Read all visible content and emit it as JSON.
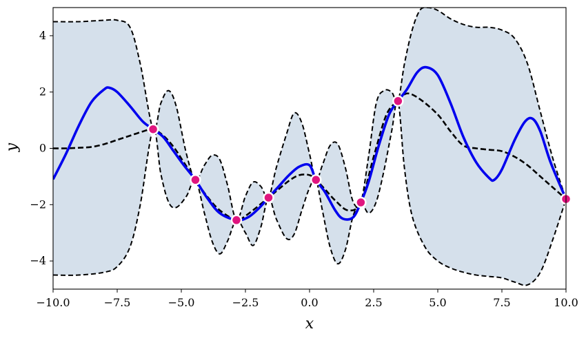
{
  "chart_data": {
    "type": "line",
    "xlabel": "x",
    "ylabel": "y",
    "xlim": [
      -10,
      10
    ],
    "ylim": [
      -5,
      5
    ],
    "x_ticks": [
      -10.0,
      -7.5,
      -5.0,
      -2.5,
      0.0,
      2.5,
      5.0,
      7.5,
      10.0
    ],
    "x_tick_labels": [
      "−10.0",
      "−7.5",
      "−5.0",
      "−2.5",
      "0.0",
      "2.5",
      "5.0",
      "7.5",
      "10.0"
    ],
    "y_ticks": [
      -4,
      -2,
      0,
      2,
      4
    ],
    "y_tick_labels": [
      "−4",
      "−2",
      "0",
      "2",
      "4"
    ],
    "grid": false,
    "colors": {
      "sample": "#0000ee",
      "mean": "#000000",
      "band_fill": "#d5e0eb",
      "point_fill": "#e0157f",
      "point_edge": "#ffffff"
    },
    "observations": [
      {
        "x": -6.1,
        "y": 0.68
      },
      {
        "x": -4.45,
        "y": -1.12
      },
      {
        "x": -2.85,
        "y": -2.55
      },
      {
        "x": -1.6,
        "y": -1.75
      },
      {
        "x": 0.25,
        "y": -1.12
      },
      {
        "x": 2.0,
        "y": -1.92
      },
      {
        "x": 3.45,
        "y": 1.68
      },
      {
        "x": 10.0,
        "y": -1.8
      }
    ],
    "series": [
      {
        "role": "upper",
        "x": [
          -10,
          -9,
          -8,
          -7.5,
          -7,
          -6.6,
          -6.1,
          -5.8,
          -5.5,
          -5.2,
          -4.8,
          -4.45,
          -4.1,
          -3.8,
          -3.5,
          -3.2,
          -2.85,
          -2.5,
          -2.2,
          -1.9,
          -1.6,
          -1.3,
          -0.9,
          -0.6,
          -0.3,
          0.0,
          0.25,
          0.5,
          0.8,
          1.1,
          1.4,
          1.7,
          2.0,
          2.3,
          2.6,
          2.9,
          3.2,
          3.45,
          3.7,
          4.0,
          4.3,
          4.6,
          5.0,
          5.5,
          6.0,
          6.5,
          7.0,
          7.5,
          8.0,
          8.5,
          9.0,
          9.5,
          10.0
        ],
        "y": [
          4.5,
          4.5,
          4.55,
          4.55,
          4.3,
          3.0,
          0.68,
          1.6,
          2.05,
          1.5,
          -0.2,
          -1.12,
          -0.6,
          -0.25,
          -0.4,
          -1.3,
          -2.55,
          -1.7,
          -1.2,
          -1.35,
          -1.75,
          -0.7,
          0.5,
          1.25,
          0.9,
          -0.2,
          -1.12,
          -0.6,
          0.1,
          0.15,
          -0.7,
          -1.9,
          -1.92,
          -0.3,
          1.6,
          2.05,
          2.0,
          1.68,
          3.0,
          4.2,
          4.9,
          5.0,
          4.9,
          4.6,
          4.4,
          4.3,
          4.3,
          4.2,
          3.9,
          3.0,
          1.3,
          -0.4,
          -1.8
        ]
      },
      {
        "role": "lower",
        "x": [
          -10,
          -9,
          -8,
          -7.5,
          -7,
          -6.6,
          -6.1,
          -5.8,
          -5.5,
          -5.2,
          -4.8,
          -4.45,
          -4.1,
          -3.8,
          -3.5,
          -3.2,
          -2.85,
          -2.5,
          -2.2,
          -1.9,
          -1.6,
          -1.3,
          -0.9,
          -0.6,
          -0.3,
          0.0,
          0.25,
          0.5,
          0.8,
          1.1,
          1.4,
          1.7,
          2.0,
          2.3,
          2.6,
          2.9,
          3.2,
          3.45,
          3.7,
          4.0,
          4.5,
          5.0,
          5.5,
          6.0,
          6.5,
          7.0,
          7.5,
          8.0,
          8.5,
          9.0,
          9.5,
          10.0
        ],
        "y": [
          -4.5,
          -4.5,
          -4.4,
          -4.2,
          -3.5,
          -2.0,
          0.68,
          -0.9,
          -1.9,
          -2.1,
          -1.7,
          -1.12,
          -2.3,
          -3.3,
          -3.75,
          -3.3,
          -2.55,
          -3.0,
          -3.45,
          -2.8,
          -1.75,
          -2.5,
          -3.2,
          -3.05,
          -2.2,
          -1.4,
          -1.12,
          -2.2,
          -3.5,
          -4.1,
          -3.6,
          -2.4,
          -1.92,
          -2.3,
          -1.9,
          -0.8,
          0.6,
          1.68,
          -0.7,
          -2.4,
          -3.5,
          -4.0,
          -4.25,
          -4.4,
          -4.5,
          -4.55,
          -4.6,
          -4.75,
          -4.85,
          -4.4,
          -3.2,
          -1.8
        ]
      },
      {
        "role": "mean",
        "name": "",
        "x": [
          -10,
          -9.5,
          -9,
          -8.5,
          -8,
          -7.5,
          -7,
          -6.5,
          -6.1,
          -5.7,
          -5.3,
          -4.9,
          -4.45,
          -4.0,
          -3.5,
          -2.85,
          -2.5,
          -2.0,
          -1.6,
          -1.2,
          -0.8,
          -0.4,
          0.0,
          0.25,
          0.6,
          1.0,
          1.5,
          2.0,
          2.5,
          3.0,
          3.45,
          3.8,
          4.3,
          5.0,
          5.5,
          6.0,
          6.5,
          7.0,
          7.5,
          8.0,
          8.5,
          9.0,
          9.5,
          10.0
        ],
        "y": [
          0.0,
          0.0,
          0.02,
          0.05,
          0.15,
          0.3,
          0.45,
          0.6,
          0.68,
          0.45,
          0.05,
          -0.5,
          -1.12,
          -1.7,
          -2.2,
          -2.55,
          -2.4,
          -2.05,
          -1.75,
          -1.45,
          -1.15,
          -0.95,
          -0.95,
          -1.12,
          -1.45,
          -1.85,
          -2.2,
          -1.92,
          -0.3,
          1.2,
          1.68,
          1.95,
          1.75,
          1.2,
          0.6,
          0.1,
          0.0,
          -0.05,
          -0.1,
          -0.3,
          -0.6,
          -1.0,
          -1.4,
          -1.8
        ]
      },
      {
        "role": "sample",
        "name": "",
        "x": [
          -10,
          -9.5,
          -9,
          -8.5,
          -8,
          -7.8,
          -7.5,
          -7,
          -6.5,
          -6.1,
          -5.7,
          -5.3,
          -4.9,
          -4.45,
          -4.0,
          -3.5,
          -2.85,
          -2.4,
          -2.0,
          -1.6,
          -1.2,
          -0.8,
          -0.4,
          0.0,
          0.25,
          0.6,
          1.0,
          1.3,
          1.7,
          2.0,
          2.3,
          2.7,
          3.1,
          3.45,
          3.8,
          4.2,
          4.55,
          5.0,
          5.5,
          6.0,
          6.5,
          7.0,
          7.2,
          7.5,
          8.0,
          8.4,
          8.7,
          9.0,
          9.4,
          10.0
        ],
        "y": [
          -1.1,
          -0.2,
          0.8,
          1.65,
          2.1,
          2.15,
          2.0,
          1.5,
          0.95,
          0.68,
          0.4,
          -0.1,
          -0.6,
          -1.12,
          -1.75,
          -2.3,
          -2.55,
          -2.45,
          -2.15,
          -1.75,
          -1.35,
          -0.95,
          -0.65,
          -0.6,
          -1.12,
          -1.55,
          -2.2,
          -2.5,
          -2.45,
          -1.92,
          -1.2,
          0.1,
          1.2,
          1.68,
          2.1,
          2.7,
          2.88,
          2.6,
          1.6,
          0.4,
          -0.5,
          -1.05,
          -1.12,
          -0.75,
          0.3,
          0.95,
          1.05,
          0.6,
          -0.5,
          -1.8
        ]
      }
    ]
  }
}
